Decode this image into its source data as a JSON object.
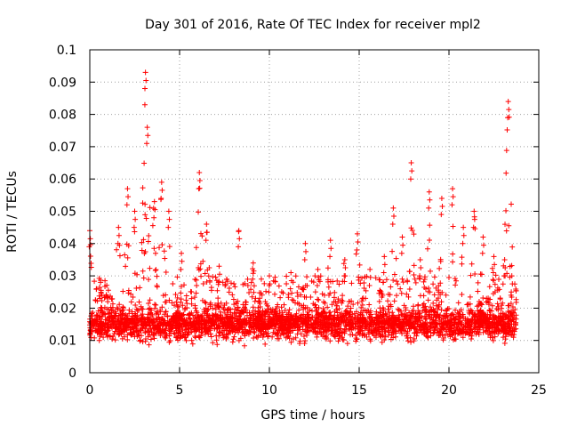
{
  "chart_data": {
    "type": "scatter",
    "title": "Day 301 of 2016, Rate Of TEC Index for receiver mpl2",
    "xlabel": "GPS time / hours",
    "ylabel": "ROTI / TECUs",
    "xlim": [
      0,
      25
    ],
    "ylim": [
      0,
      0.1
    ],
    "xticks": [
      0,
      5,
      10,
      15,
      20,
      25
    ],
    "xtick_labels": [
      "0",
      "5",
      "10",
      "15",
      "20",
      "25"
    ],
    "yticks": [
      0,
      0.01,
      0.02,
      0.03,
      0.04,
      0.05,
      0.06,
      0.07,
      0.08,
      0.09,
      0.1
    ],
    "ytick_labels": [
      "0",
      "0.01",
      "0.02",
      "0.03",
      "0.04",
      "0.05",
      "0.06",
      "0.07",
      "0.08",
      "0.09",
      "0.1"
    ],
    "grid": true,
    "marker": "+",
    "color": "#ff0000",
    "series": [
      {
        "name": "mpl2",
        "x_range": [
          0,
          23.75
        ],
        "baseline": {
          "min": 0.004,
          "typical": 0.015,
          "band_top": 0.03
        },
        "peaks": [
          {
            "x": 0.0,
            "y": 0.044
          },
          {
            "x": 0.6,
            "y": 0.028
          },
          {
            "x": 1.6,
            "y": 0.045
          },
          {
            "x": 2.1,
            "y": 0.057
          },
          {
            "x": 2.5,
            "y": 0.05
          },
          {
            "x": 3.1,
            "y": 0.093
          },
          {
            "x": 3.2,
            "y": 0.076
          },
          {
            "x": 3.6,
            "y": 0.053
          },
          {
            "x": 4.0,
            "y": 0.059
          },
          {
            "x": 4.4,
            "y": 0.05
          },
          {
            "x": 5.1,
            "y": 0.037
          },
          {
            "x": 6.1,
            "y": 0.062
          },
          {
            "x": 6.5,
            "y": 0.046
          },
          {
            "x": 7.2,
            "y": 0.033
          },
          {
            "x": 8.3,
            "y": 0.044
          },
          {
            "x": 9.1,
            "y": 0.034
          },
          {
            "x": 10.0,
            "y": 0.03
          },
          {
            "x": 11.2,
            "y": 0.031
          },
          {
            "x": 12.0,
            "y": 0.04
          },
          {
            "x": 12.7,
            "y": 0.032
          },
          {
            "x": 13.4,
            "y": 0.041
          },
          {
            "x": 14.2,
            "y": 0.035
          },
          {
            "x": 14.9,
            "y": 0.043
          },
          {
            "x": 15.6,
            "y": 0.032
          },
          {
            "x": 16.4,
            "y": 0.036
          },
          {
            "x": 16.9,
            "y": 0.051
          },
          {
            "x": 17.4,
            "y": 0.042
          },
          {
            "x": 17.9,
            "y": 0.065
          },
          {
            "x": 18.4,
            "y": 0.035
          },
          {
            "x": 18.9,
            "y": 0.056
          },
          {
            "x": 19.6,
            "y": 0.054
          },
          {
            "x": 20.2,
            "y": 0.057
          },
          {
            "x": 20.8,
            "y": 0.045
          },
          {
            "x": 21.4,
            "y": 0.05
          },
          {
            "x": 21.9,
            "y": 0.042
          },
          {
            "x": 22.5,
            "y": 0.036
          },
          {
            "x": 23.1,
            "y": 0.035
          },
          {
            "x": 23.3,
            "y": 0.084
          },
          {
            "x": 23.5,
            "y": 0.03
          }
        ]
      }
    ]
  }
}
